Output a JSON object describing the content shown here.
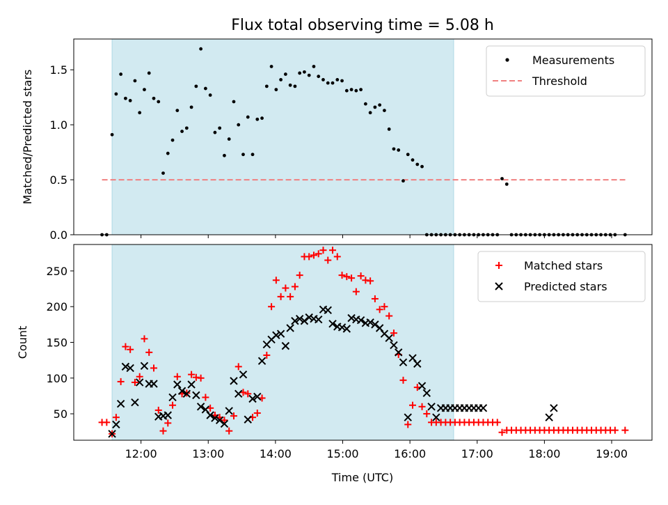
{
  "chart_data": {
    "title": "Flux total observing time = 5.08 h",
    "xlabel": "Time (UTC)",
    "x_ticks": [
      "12:00",
      "13:00",
      "14:00",
      "15:00",
      "16:00",
      "17:00",
      "18:00",
      "19:00"
    ],
    "x_tick_hours": [
      12,
      13,
      14,
      15,
      16,
      17,
      18,
      19
    ],
    "xlim_hours": [
      11.0,
      19.6
    ],
    "observing_window_hours": [
      11.57,
      16.65
    ],
    "colors": {
      "window": "#add8e6",
      "measurements": "#000000",
      "threshold": "#f08080",
      "matched": "#ff0000",
      "predicted": "#000000"
    },
    "panels": [
      {
        "id": "ratio",
        "type": "scatter",
        "ylabel": "Matched/Predicted stars",
        "ylim": [
          0,
          1.78
        ],
        "y_ticks": [
          "0.0",
          "0.5",
          "1.0",
          "1.5"
        ],
        "y_tick_values": [
          0,
          0.5,
          1.0,
          1.5
        ],
        "legend_position": "top-right",
        "threshold": {
          "name": "Threshold",
          "value": 0.5,
          "x_range": [
            11.42,
            19.22
          ]
        },
        "series": [
          {
            "name": "Measurements",
            "x": [
              11.42,
              11.49,
              11.57,
              11.63,
              11.7,
              11.77,
              11.84,
              11.91,
              11.98,
              12.05,
              12.12,
              12.19,
              12.26,
              12.33,
              12.4,
              12.47,
              12.54,
              12.61,
              12.68,
              12.75,
              12.82,
              12.89,
              12.96,
              13.03,
              13.1,
              13.17,
              13.24,
              13.31,
              13.38,
              13.45,
              13.52,
              13.59,
              13.66,
              13.73,
              13.8,
              13.87,
              13.94,
              14.01,
              14.08,
              14.15,
              14.22,
              14.29,
              14.36,
              14.43,
              14.5,
              14.57,
              14.64,
              14.71,
              14.78,
              14.85,
              14.92,
              14.99,
              15.06,
              15.13,
              15.2,
              15.27,
              15.34,
              15.41,
              15.48,
              15.55,
              15.62,
              15.69,
              15.76,
              15.83,
              15.9,
              15.97,
              16.04,
              16.11,
              16.18,
              16.25,
              16.32,
              16.39,
              16.46,
              16.53,
              16.6,
              16.67,
              16.74,
              16.81,
              16.88,
              16.95,
              17.02,
              17.09,
              17.16,
              17.23,
              17.3,
              17.37,
              17.44,
              17.51,
              17.58,
              17.65,
              17.72,
              17.79,
              17.86,
              17.93,
              18.0,
              18.07,
              18.14,
              18.21,
              18.28,
              18.35,
              18.42,
              18.49,
              18.56,
              18.63,
              18.7,
              18.77,
              18.84,
              18.91,
              18.98,
              19.05,
              19.2
            ],
            "y": [
              0,
              0,
              0.91,
              1.28,
              1.46,
              1.24,
              1.22,
              1.4,
              1.11,
              1.32,
              1.47,
              1.24,
              1.21,
              0.56,
              0.74,
              0.86,
              1.13,
              0.94,
              0.97,
              1.16,
              1.35,
              1.69,
              1.33,
              1.27,
              0.93,
              0.97,
              0.72,
              0.87,
              1.21,
              1.0,
              0.73,
              1.07,
              0.73,
              1.05,
              1.06,
              1.35,
              1.53,
              1.32,
              1.41,
              1.46,
              1.36,
              1.35,
              1.47,
              1.48,
              1.45,
              1.53,
              1.44,
              1.41,
              1.38,
              1.38,
              1.41,
              1.4,
              1.31,
              1.32,
              1.31,
              1.32,
              1.19,
              1.11,
              1.16,
              1.18,
              1.13,
              0.96,
              0.78,
              0.77,
              0.49,
              0.73,
              0.68,
              0.64,
              0.62,
              0,
              0,
              0,
              0,
              0,
              0,
              0,
              0,
              0,
              0,
              0,
              0,
              0,
              0,
              0,
              0,
              0.51,
              0.46,
              0,
              0,
              0,
              0,
              0,
              0,
              0,
              0,
              0,
              0,
              0,
              0,
              0,
              0,
              0,
              0,
              0,
              0,
              0,
              0,
              0,
              0,
              0,
              0
            ]
          }
        ]
      },
      {
        "id": "count",
        "type": "scatter",
        "ylabel": "Count",
        "ylim": [
          13,
          287
        ],
        "y_ticks": [
          "50",
          "100",
          "150",
          "200",
          "250"
        ],
        "y_tick_values": [
          50,
          100,
          150,
          200,
          250
        ],
        "legend_position": "top-right",
        "series": [
          {
            "name": "Matched stars",
            "marker": "plus",
            "x": [
              11.42,
              11.49,
              11.57,
              11.63,
              11.7,
              11.77,
              11.84,
              11.91,
              11.98,
              12.05,
              12.12,
              12.19,
              12.26,
              12.33,
              12.4,
              12.47,
              12.54,
              12.61,
              12.68,
              12.75,
              12.82,
              12.89,
              12.96,
              13.03,
              13.1,
              13.17,
              13.24,
              13.31,
              13.38,
              13.45,
              13.52,
              13.59,
              13.66,
              13.73,
              13.8,
              13.87,
              13.94,
              14.01,
              14.08,
              14.15,
              14.22,
              14.29,
              14.36,
              14.43,
              14.5,
              14.57,
              14.64,
              14.71,
              14.78,
              14.85,
              14.92,
              14.99,
              15.06,
              15.13,
              15.2,
              15.27,
              15.34,
              15.41,
              15.48,
              15.55,
              15.62,
              15.69,
              15.76,
              15.83,
              15.9,
              15.97,
              16.04,
              16.11,
              16.18,
              16.25,
              16.32,
              16.39,
              16.46,
              16.53,
              16.6,
              16.67,
              16.74,
              16.81,
              16.88,
              16.95,
              17.02,
              17.09,
              17.16,
              17.23,
              17.3,
              17.37,
              17.44,
              17.51,
              17.58,
              17.65,
              17.72,
              17.79,
              17.86,
              17.93,
              18.0,
              18.07,
              18.14,
              18.21,
              18.28,
              18.35,
              18.42,
              18.49,
              18.56,
              18.63,
              18.7,
              18.77,
              18.84,
              18.91,
              18.98,
              19.05,
              19.2
            ],
            "y": [
              38,
              38,
              22,
              45,
              95,
              144,
              140,
              94,
              102,
              155,
              136,
              114,
              55,
              26,
              37,
              62,
              102,
              78,
              79,
              105,
              101,
              100,
              73,
              58,
              48,
              45,
              41,
              26,
              47,
              116,
              80,
              78,
              45,
              51,
              72,
              132,
              200,
              237,
              214,
              226,
              214,
              228,
              244,
              270,
              270,
              272,
              274,
              279,
              265,
              279,
              270,
              244,
              242,
              240,
              221,
              243,
              237,
              236,
              211,
              196,
              200,
              187,
              163,
              133,
              97,
              35,
              62,
              87,
              60,
              50,
              38,
              38,
              38,
              38,
              38,
              38,
              38,
              38,
              38,
              38,
              38,
              38,
              38,
              38,
              38,
              24,
              27,
              27,
              27,
              27,
              27,
              27,
              27,
              27,
              27,
              27,
              27,
              27,
              27,
              27,
              27,
              27,
              27,
              27,
              27,
              27,
              27,
              27,
              27,
              27,
              27
            ]
          },
          {
            "name": "Predicted stars",
            "marker": "x",
            "x": [
              11.57,
              11.63,
              11.7,
              11.77,
              11.84,
              11.91,
              11.98,
              12.05,
              12.12,
              12.19,
              12.26,
              12.33,
              12.4,
              12.47,
              12.54,
              12.61,
              12.68,
              12.75,
              12.82,
              12.89,
              12.96,
              13.03,
              13.1,
              13.17,
              13.24,
              13.31,
              13.38,
              13.45,
              13.52,
              13.59,
              13.66,
              13.73,
              13.8,
              13.87,
              13.94,
              14.01,
              14.08,
              14.15,
              14.22,
              14.29,
              14.36,
              14.43,
              14.5,
              14.57,
              14.64,
              14.71,
              14.78,
              14.85,
              14.92,
              14.99,
              15.06,
              15.13,
              15.2,
              15.27,
              15.34,
              15.41,
              15.48,
              15.55,
              15.62,
              15.69,
              15.76,
              15.83,
              15.9,
              15.97,
              16.04,
              16.11,
              16.18,
              16.25,
              16.32,
              16.39,
              16.46,
              16.53,
              16.6,
              16.67,
              16.74,
              16.81,
              16.88,
              16.95,
              17.02,
              17.09,
              18.07,
              18.14
            ],
            "y": [
              22,
              35,
              64,
              116,
              114,
              66,
              94,
              117,
              92,
              92,
              46,
              47,
              48,
              73,
              91,
              82,
              78,
              91,
              76,
              60,
              56,
              48,
              44,
              41,
              36,
              54,
              96,
              78,
              105,
              42,
              71,
              74,
              124,
              147,
              154,
              160,
              162,
              145,
              170,
              180,
              183,
              180,
              185,
              183,
              182,
              196,
              195,
              176,
              172,
              171,
              169,
              184,
              182,
              181,
              177,
              178,
              175,
              170,
              162,
              156,
              146,
              136,
              122,
              45,
              128,
              120,
              89,
              79,
              60,
              45,
              58,
              58,
              58,
              58,
              58,
              58,
              58,
              58,
              58,
              58,
              45,
              58
            ]
          }
        ]
      }
    ]
  }
}
